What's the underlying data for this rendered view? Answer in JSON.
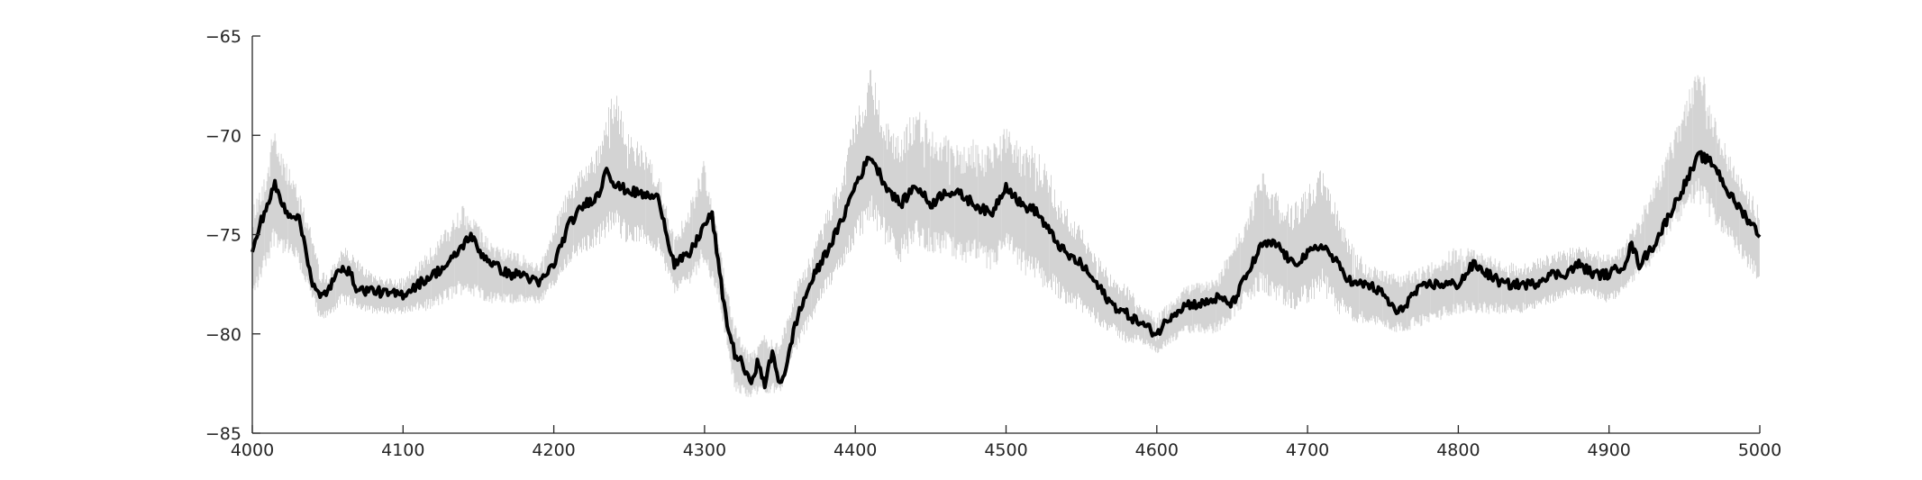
{
  "chart_data": {
    "type": "line",
    "title": "",
    "xlabel": "",
    "ylabel": "",
    "xlim": [
      4000,
      5000
    ],
    "ylim": [
      -85,
      -65
    ],
    "xticks": [
      4000,
      4100,
      4200,
      4300,
      4400,
      4500,
      4600,
      4700,
      4800,
      4900,
      5000
    ],
    "yticks": [
      -85,
      -80,
      -75,
      -70,
      -65
    ],
    "xtick_labels": [
      "4000",
      "4100",
      "4200",
      "4300",
      "4400",
      "4500",
      "4600",
      "4700",
      "4800",
      "4900",
      "5000"
    ],
    "ytick_labels": [
      "−85",
      "−80",
      "−75",
      "−70",
      "−65"
    ],
    "grid": false,
    "legend": "none",
    "colors": {
      "mean_line": "#000000",
      "spread_band": "#c8c8c8",
      "axis": "#262626"
    },
    "series": [
      {
        "style": "thick-black-line",
        "x": [
          4000,
          4005,
          4010,
          4015,
          4020,
          4025,
          4030,
          4035,
          4040,
          4045,
          4050,
          4055,
          4060,
          4065,
          4070,
          4080,
          4090,
          4100,
          4110,
          4120,
          4130,
          4140,
          4145,
          4150,
          4160,
          4170,
          4180,
          4190,
          4200,
          4210,
          4220,
          4230,
          4235,
          4240,
          4250,
          4260,
          4270,
          4275,
          4280,
          4290,
          4300,
          4305,
          4310,
          4315,
          4320,
          4325,
          4330,
          4335,
          4340,
          4345,
          4350,
          4355,
          4360,
          4370,
          4380,
          4390,
          4400,
          4410,
          4420,
          4430,
          4440,
          4450,
          4460,
          4470,
          4480,
          4490,
          4500,
          4510,
          4520,
          4530,
          4540,
          4550,
          4560,
          4570,
          4580,
          4590,
          4600,
          4610,
          4620,
          4630,
          4640,
          4650,
          4660,
          4670,
          4680,
          4690,
          4700,
          4710,
          4720,
          4730,
          4740,
          4750,
          4760,
          4770,
          4780,
          4790,
          4800,
          4810,
          4820,
          4830,
          4840,
          4850,
          4860,
          4870,
          4880,
          4890,
          4900,
          4910,
          4915,
          4920,
          4930,
          4940,
          4950,
          4960,
          4970,
          4980,
          4990,
          5000
        ],
        "y": [
          -76.0,
          -74.5,
          -73.5,
          -72.5,
          -73.5,
          -74.0,
          -74.0,
          -75.5,
          -77.5,
          -78.2,
          -77.8,
          -77.2,
          -76.5,
          -77.0,
          -77.8,
          -77.8,
          -78.0,
          -78.0,
          -77.5,
          -77.0,
          -76.5,
          -75.5,
          -75.0,
          -75.8,
          -76.5,
          -77.0,
          -77.0,
          -77.5,
          -76.5,
          -74.5,
          -73.5,
          -73.0,
          -71.5,
          -72.5,
          -72.8,
          -73.0,
          -73.2,
          -75.0,
          -76.5,
          -76.0,
          -74.5,
          -74.0,
          -77.0,
          -79.5,
          -81.0,
          -81.5,
          -82.5,
          -81.5,
          -82.5,
          -81.0,
          -82.5,
          -81.5,
          -79.5,
          -77.5,
          -76.0,
          -74.5,
          -72.5,
          -71.0,
          -72.5,
          -73.5,
          -72.5,
          -73.5,
          -72.8,
          -73.0,
          -73.5,
          -74.0,
          -72.5,
          -73.5,
          -73.8,
          -75.0,
          -76.0,
          -76.5,
          -77.5,
          -78.5,
          -79.0,
          -79.5,
          -80.0,
          -79.0,
          -78.5,
          -78.5,
          -78.2,
          -78.5,
          -77.0,
          -75.5,
          -75.5,
          -76.5,
          -76.0,
          -75.5,
          -76.5,
          -77.5,
          -77.5,
          -78.0,
          -79.0,
          -78.0,
          -77.5,
          -77.5,
          -77.5,
          -76.5,
          -77.0,
          -77.5,
          -77.5,
          -77.5,
          -77.0,
          -77.0,
          -76.5,
          -77.0,
          -77.0,
          -76.5,
          -75.5,
          -76.5,
          -75.5,
          -74.0,
          -72.5,
          -71.0,
          -71.5,
          -73.0,
          -74.0,
          -75.0
        ]
      },
      {
        "style": "light-gray-spread-band",
        "x": [
          4000,
          4010,
          4015,
          4020,
          4030,
          4040,
          4045,
          4050,
          4060,
          4080,
          4100,
          4120,
          4140,
          4160,
          4180,
          4190,
          4200,
          4210,
          4220,
          4230,
          4240,
          4250,
          4260,
          4270,
          4280,
          4290,
          4300,
          4310,
          4320,
          4330,
          4340,
          4350,
          4360,
          4370,
          4380,
          4390,
          4400,
          4410,
          4420,
          4430,
          4440,
          4450,
          4460,
          4470,
          4480,
          4490,
          4500,
          4510,
          4520,
          4530,
          4540,
          4550,
          4560,
          4570,
          4580,
          4590,
          4600,
          4620,
          4640,
          4660,
          4670,
          4680,
          4690,
          4700,
          4710,
          4720,
          4730,
          4740,
          4760,
          4780,
          4800,
          4820,
          4840,
          4860,
          4880,
          4900,
          4910,
          4920,
          4930,
          4940,
          4950,
          4960,
          4970,
          4980,
          4990,
          5000
        ],
        "upper": [
          -73.5,
          -71.5,
          -69.0,
          -71.0,
          -72.5,
          -75.0,
          -76.8,
          -77.0,
          -75.5,
          -77.0,
          -77.2,
          -75.5,
          -73.5,
          -75.5,
          -76.0,
          -76.5,
          -74.5,
          -72.5,
          -71.5,
          -70.5,
          -67.5,
          -70.0,
          -70.5,
          -72.0,
          -75.0,
          -73.5,
          -71.0,
          -75.5,
          -79.5,
          -81.0,
          -80.0,
          -80.5,
          -77.5,
          -76.0,
          -74.0,
          -72.0,
          -69.0,
          -66.5,
          -69.0,
          -70.0,
          -68.5,
          -69.5,
          -70.0,
          -70.5,
          -70.0,
          -70.5,
          -69.5,
          -70.5,
          -70.5,
          -72.0,
          -73.5,
          -74.5,
          -76.0,
          -77.0,
          -77.5,
          -78.5,
          -79.0,
          -77.5,
          -77.0,
          -74.0,
          -71.5,
          -73.0,
          -73.5,
          -72.5,
          -71.5,
          -73.5,
          -75.5,
          -76.5,
          -77.0,
          -76.5,
          -75.5,
          -76.0,
          -76.5,
          -76.0,
          -75.5,
          -76.0,
          -75.5,
          -74.0,
          -72.5,
          -70.5,
          -68.5,
          -66.0,
          -69.0,
          -71.0,
          -72.5,
          -73.5
        ],
        "lower": [
          -78.5,
          -76.5,
          -75.5,
          -76.0,
          -76.5,
          -78.5,
          -79.5,
          -79.2,
          -78.5,
          -79.0,
          -79.0,
          -78.8,
          -78.0,
          -78.5,
          -78.5,
          -78.5,
          -77.8,
          -76.5,
          -76.0,
          -75.5,
          -75.0,
          -75.5,
          -75.5,
          -76.0,
          -78.0,
          -77.5,
          -76.5,
          -78.5,
          -83.0,
          -83.2,
          -83.0,
          -83.0,
          -81.0,
          -79.5,
          -78.0,
          -77.0,
          -75.5,
          -74.5,
          -75.5,
          -76.5,
          -75.5,
          -76.0,
          -76.0,
          -76.5,
          -76.5,
          -77.0,
          -76.0,
          -77.0,
          -77.5,
          -78.0,
          -78.5,
          -79.0,
          -79.5,
          -80.0,
          -80.5,
          -80.5,
          -81.0,
          -80.0,
          -80.0,
          -78.5,
          -78.0,
          -78.5,
          -79.0,
          -78.5,
          -78.0,
          -79.0,
          -79.5,
          -79.5,
          -80.0,
          -79.5,
          -79.0,
          -79.0,
          -79.0,
          -78.5,
          -78.0,
          -78.5,
          -78.0,
          -77.0,
          -76.5,
          -75.0,
          -74.0,
          -73.5,
          -74.5,
          -75.5,
          -76.5,
          -77.5
        ]
      }
    ]
  }
}
